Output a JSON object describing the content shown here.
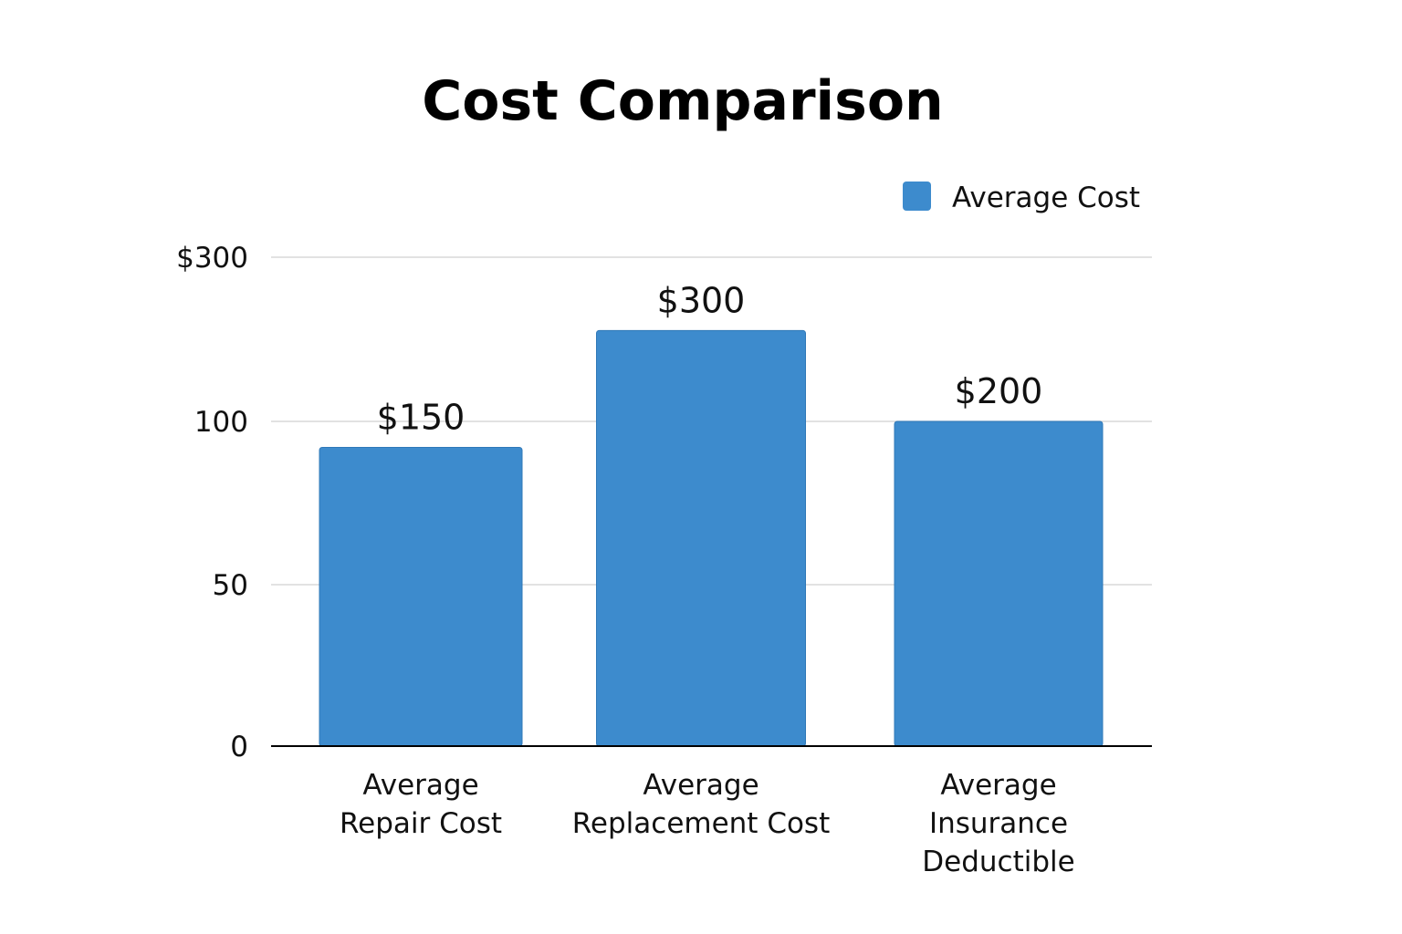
{
  "chart_data": {
    "type": "bar",
    "title": "Cost Comparison",
    "xlabel": "",
    "ylabel": "",
    "categories": [
      "Average Repair Cost",
      "Average Replacement Cost",
      "Average Insurance Deductible"
    ],
    "category_lines": [
      [
        "Average",
        "Repair Cost"
      ],
      [
        "Average",
        "Replacement Cost"
      ],
      [
        "Average",
        "Insurance",
        "Deductible"
      ]
    ],
    "series": [
      {
        "name": "Average Cost",
        "values": [
          150,
          300,
          200
        ],
        "value_labels": [
          "$150",
          "$300",
          "$200"
        ],
        "color": "#3d8bcd"
      }
    ],
    "y_ticks": [
      {
        "label": "0"
      },
      {
        "label": "50"
      },
      {
        "label": "100"
      },
      {
        "label": "$300"
      }
    ],
    "bar_levels": [
      0.92,
      1.28,
      1.0
    ],
    "grid": true,
    "legend_position": "top-right"
  }
}
